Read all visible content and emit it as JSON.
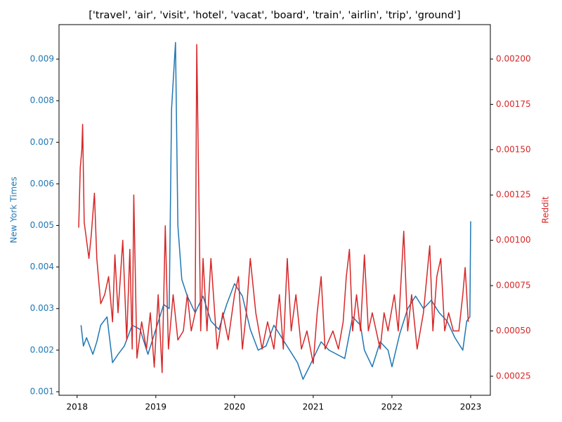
{
  "chart_data": {
    "type": "line",
    "title": "['travel', 'air', 'visit', 'hotel', 'vacat', 'board', 'train', 'airlin', 'trip', 'ground']",
    "ylabel": "New York Times",
    "y2label": "Reddit",
    "xlim": [
      2017.77,
      2023.25
    ],
    "xticks": [
      2018,
      2019,
      2020,
      2021,
      2022,
      2023
    ],
    "ylim": [
      0.000915,
      0.00983
    ],
    "yticks": [
      0.001,
      0.002,
      0.003,
      0.004,
      0.005,
      0.006,
      0.007,
      0.008,
      0.009
    ],
    "y2lim": [
      0.000145,
      0.00219
    ],
    "y2ticks": [
      0.00025,
      {
        "value": 0.0005,
        "label": "0.00050"
      },
      0.00075,
      {
        "value": 0.001,
        "label": "0.00100"
      },
      0.00125,
      {
        "value": 0.0015,
        "label": "0.00150"
      },
      0.00175,
      {
        "value": 0.002,
        "label": "0.00200"
      }
    ],
    "grid": false,
    "series": [
      {
        "color": "#1f77b4",
        "axis": "y",
        "x": [
          2018.05,
          2018.08,
          2018.12,
          2018.2,
          2018.25,
          2018.3,
          2018.38,
          2018.45,
          2018.52,
          2018.6,
          2018.7,
          2018.8,
          2018.9,
          2019.0,
          2019.1,
          2019.17,
          2019.2,
          2019.25,
          2019.28,
          2019.33,
          2019.4,
          2019.5,
          2019.6,
          2019.7,
          2019.8,
          2019.9,
          2020.0,
          2020.1,
          2020.2,
          2020.3,
          2020.4,
          2020.5,
          2020.6,
          2020.7,
          2020.8,
          2020.87,
          2020.95,
          2021.0,
          2021.1,
          2021.2,
          2021.3,
          2021.4,
          2021.5,
          2021.6,
          2021.65,
          2021.75,
          2021.85,
          2021.95,
          2022.0,
          2022.1,
          2022.2,
          2022.3,
          2022.4,
          2022.5,
          2022.6,
          2022.7,
          2022.8,
          2022.9,
          2022.95,
          2022.99,
          2023.0
        ],
        "values": [
          0.0026,
          0.0021,
          0.0023,
          0.0019,
          0.0022,
          0.0026,
          0.0028,
          0.0017,
          0.0019,
          0.0021,
          0.0026,
          0.0025,
          0.0019,
          0.0025,
          0.0031,
          0.003,
          0.0078,
          0.0094,
          0.005,
          0.0037,
          0.0033,
          0.0029,
          0.0033,
          0.0027,
          0.0025,
          0.0031,
          0.0036,
          0.0033,
          0.0025,
          0.002,
          0.0021,
          0.0026,
          0.0023,
          0.002,
          0.0017,
          0.0013,
          0.0016,
          0.0018,
          0.0022,
          0.002,
          0.0019,
          0.0018,
          0.0028,
          0.0026,
          0.002,
          0.0016,
          0.0022,
          0.002,
          0.0016,
          0.0024,
          0.003,
          0.0033,
          0.003,
          0.0032,
          0.0029,
          0.0027,
          0.0023,
          0.002,
          0.0027,
          0.0028,
          0.0051
        ]
      },
      {
        "color": "#d62728",
        "axis": "y2",
        "x": [
          2018.02,
          2018.04,
          2018.06,
          2018.07,
          2018.09,
          2018.12,
          2018.15,
          2018.18,
          2018.22,
          2018.25,
          2018.3,
          2018.35,
          2018.4,
          2018.45,
          2018.48,
          2018.52,
          2018.58,
          2018.63,
          2018.67,
          2018.7,
          2018.72,
          2018.76,
          2018.82,
          2018.88,
          2018.93,
          2018.98,
          2019.03,
          2019.08,
          2019.12,
          2019.16,
          2019.22,
          2019.28,
          2019.35,
          2019.4,
          2019.45,
          2019.5,
          2019.52,
          2019.54,
          2019.57,
          2019.6,
          2019.65,
          2019.7,
          2019.78,
          2019.85,
          2019.92,
          2020.0,
          2020.05,
          2020.1,
          2020.15,
          2020.2,
          2020.27,
          2020.35,
          2020.42,
          2020.5,
          2020.57,
          2020.62,
          2020.67,
          2020.72,
          2020.78,
          2020.85,
          2020.92,
          2021.0,
          2021.05,
          2021.1,
          2021.15,
          2021.25,
          2021.32,
          2021.38,
          2021.42,
          2021.46,
          2021.5,
          2021.55,
          2021.6,
          2021.65,
          2021.7,
          2021.75,
          2021.85,
          2021.9,
          2021.95,
          2022.03,
          2022.08,
          2022.15,
          2022.2,
          2022.25,
          2022.32,
          2022.4,
          2022.48,
          2022.52,
          2022.57,
          2022.62,
          2022.67,
          2022.72,
          2022.78,
          2022.85,
          2022.9,
          2022.93,
          2022.97
        ],
        "values": [
          0.00107,
          0.0014,
          0.0015,
          0.00164,
          0.0011,
          0.001,
          0.0009,
          0.00103,
          0.00126,
          0.0009,
          0.00065,
          0.0007,
          0.0008,
          0.00055,
          0.00092,
          0.0006,
          0.001,
          0.00045,
          0.00095,
          0.0004,
          0.00125,
          0.00035,
          0.00055,
          0.0004,
          0.0006,
          0.0003,
          0.0007,
          0.00027,
          0.00108,
          0.0004,
          0.0007,
          0.00045,
          0.0005,
          0.0007,
          0.0005,
          0.0006,
          0.00208,
          0.00145,
          0.0005,
          0.0009,
          0.0005,
          0.0009,
          0.0004,
          0.0006,
          0.00045,
          0.0007,
          0.0008,
          0.0004,
          0.0006,
          0.0009,
          0.0006,
          0.0004,
          0.00055,
          0.0004,
          0.0007,
          0.0004,
          0.0009,
          0.0005,
          0.0007,
          0.0004,
          0.0005,
          0.00032,
          0.0006,
          0.0008,
          0.0004,
          0.0005,
          0.0004,
          0.00055,
          0.0008,
          0.00095,
          0.0005,
          0.0007,
          0.0005,
          0.00092,
          0.0005,
          0.0006,
          0.0004,
          0.0006,
          0.0005,
          0.0007,
          0.0005,
          0.00105,
          0.0005,
          0.0007,
          0.0004,
          0.0006,
          0.00097,
          0.0005,
          0.0008,
          0.0009,
          0.0005,
          0.0006,
          0.0005,
          0.0005,
          0.0007,
          0.00085,
          0.00055
        ]
      }
    ]
  }
}
